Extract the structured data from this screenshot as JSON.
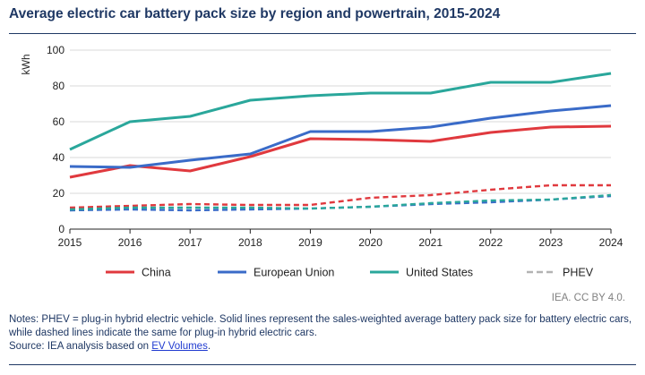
{
  "title": "Average electric car battery pack size by region and powertrain, 2015-2024",
  "credit": "IEA. CC BY 4.0.",
  "notes": "Notes: PHEV = plug-in hybrid electric vehicle. Solid lines represent the sales-weighted average battery pack size for battery electric cars, while dashed lines indicate the same for plug-in hybrid electric cars.",
  "source": {
    "prefix": "Source: IEA analysis based on ",
    "link_text": "EV Volumes",
    "suffix": "."
  },
  "chart_data": {
    "type": "line",
    "title": "Average electric car battery pack size by region and powertrain, 2015-2024",
    "xlabel": "",
    "ylabel": "kWh",
    "x": [
      2015,
      2016,
      2017,
      2018,
      2019,
      2020,
      2021,
      2022,
      2023,
      2024
    ],
    "ylim": [
      0,
      100
    ],
    "yticks": [
      0,
      20,
      40,
      60,
      80,
      100
    ],
    "grid": "horizontal",
    "legend_position": "bottom",
    "series": [
      {
        "name": "China",
        "powertrain": "BEV",
        "color": "#e0393e",
        "dash": false,
        "values": [
          29,
          35.5,
          32.5,
          40.5,
          50.5,
          50,
          49,
          54,
          57,
          57.5
        ]
      },
      {
        "name": "European Union",
        "powertrain": "BEV",
        "color": "#3a6bc8",
        "dash": false,
        "values": [
          35,
          34.5,
          38.5,
          42,
          54.5,
          54.5,
          57,
          62,
          66,
          69
        ]
      },
      {
        "name": "United States",
        "powertrain": "BEV",
        "color": "#2aa79b",
        "dash": false,
        "values": [
          44.5,
          60,
          63,
          72,
          74.5,
          76,
          76,
          82,
          82,
          87
        ]
      },
      {
        "name": "China",
        "powertrain": "PHEV",
        "color": "#e0393e",
        "dash": true,
        "values": [
          12,
          13,
          14,
          13.5,
          13.5,
          17.5,
          19,
          22,
          24.5,
          24.5
        ]
      },
      {
        "name": "European Union",
        "powertrain": "PHEV",
        "color": "#3a6bc8",
        "dash": true,
        "values": [
          10.5,
          11,
          10.5,
          11,
          11.5,
          12.5,
          14,
          15,
          16.5,
          18.5
        ]
      },
      {
        "name": "United States",
        "powertrain": "PHEV",
        "color": "#2aa79b",
        "dash": true,
        "values": [
          11,
          12,
          12,
          12,
          11.5,
          12.5,
          14.5,
          16,
          16.5,
          19
        ]
      }
    ],
    "legend": [
      {
        "label": "China",
        "color": "#e0393e",
        "dash": false
      },
      {
        "label": "European Union",
        "color": "#3a6bc8",
        "dash": false
      },
      {
        "label": "United States",
        "color": "#2aa79b",
        "dash": false
      },
      {
        "label": "PHEV",
        "color": "#b3b3b3",
        "dash": true
      }
    ]
  }
}
